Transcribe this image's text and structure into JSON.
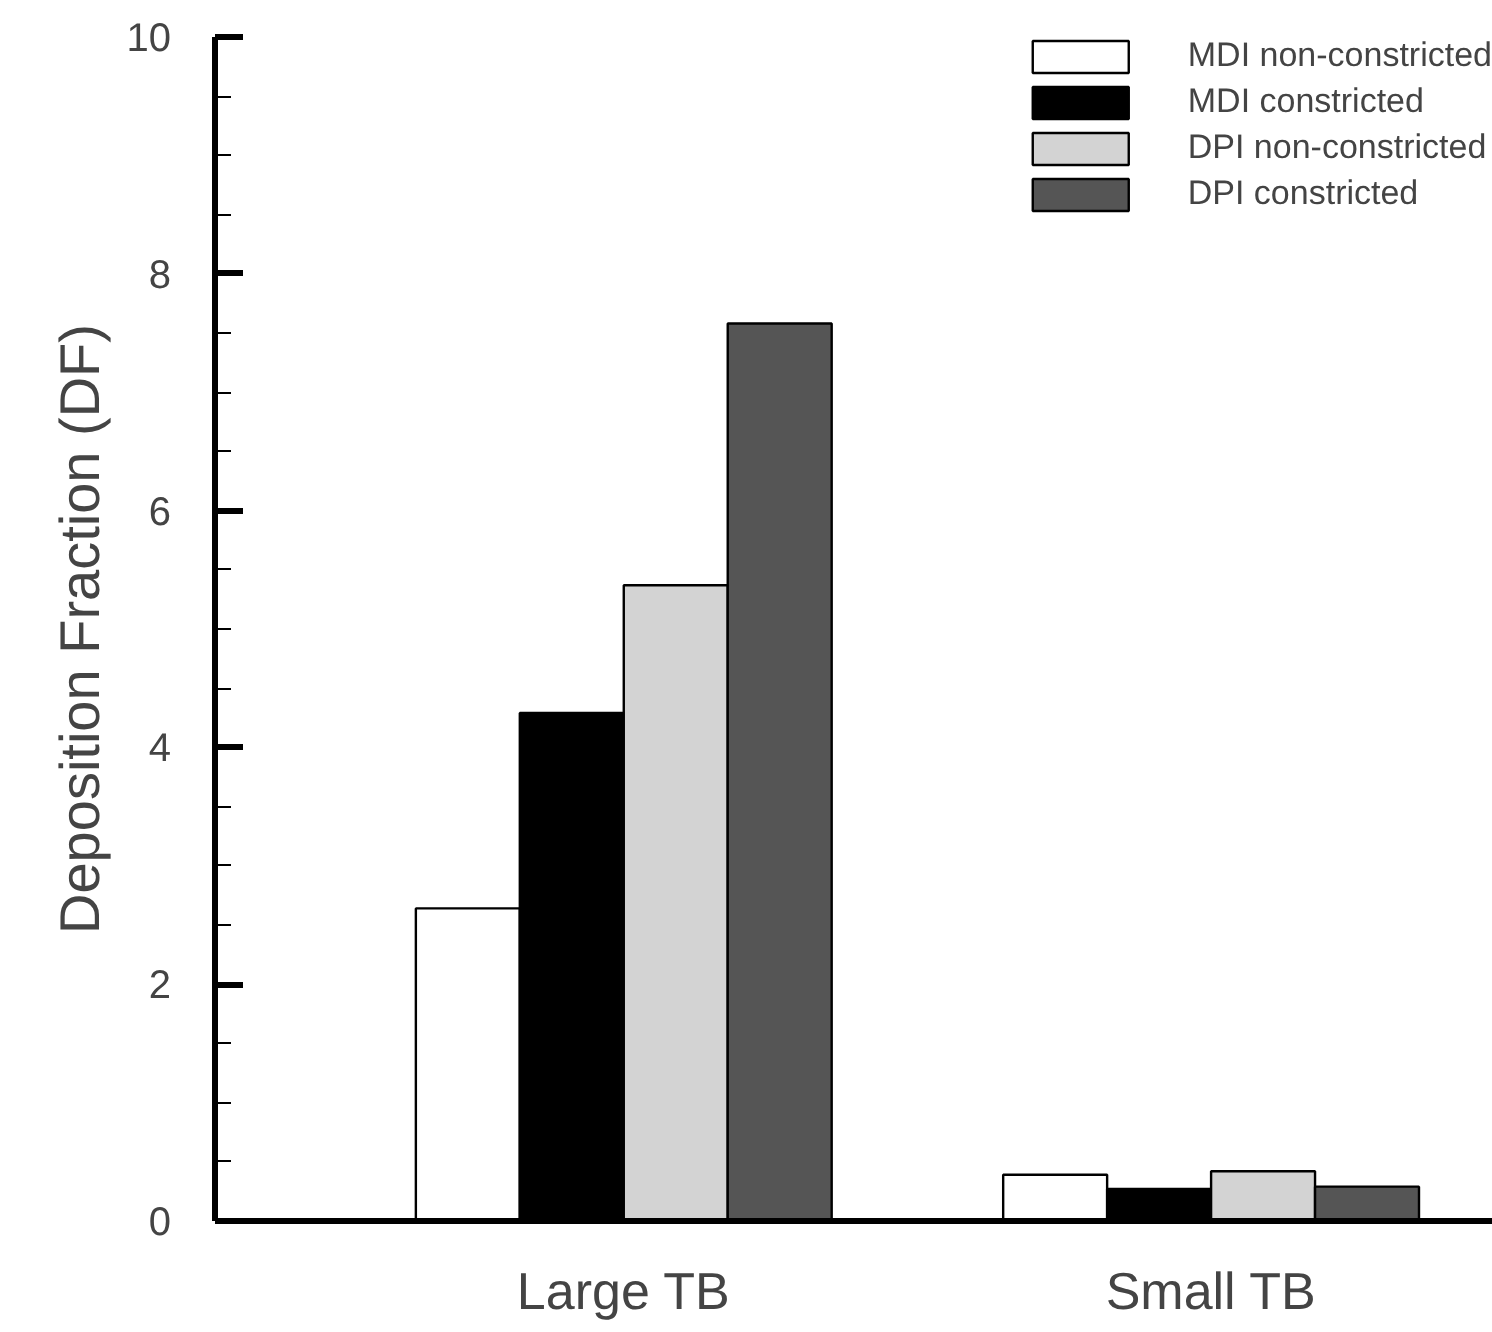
{
  "chart_data": {
    "type": "bar",
    "ylabel": "Deposition Fraction (DF)",
    "categories": [
      "Large TB",
      "Small TB"
    ],
    "series": [
      {
        "name": "MDI non-constricted",
        "color": "#ffffff",
        "values": [
          2.64,
          0.39
        ]
      },
      {
        "name": "MDI constricted",
        "color": "#000000",
        "values": [
          4.29,
          0.27
        ]
      },
      {
        "name": "DPI non-constricted",
        "color": "#d3d3d3",
        "values": [
          5.37,
          0.42
        ]
      },
      {
        "name": "DPI constricted",
        "color": "#555555",
        "values": [
          7.58,
          0.29
        ]
      }
    ],
    "ylim": [
      0,
      10
    ],
    "yticks": [
      0,
      {
        "value": 0.5,
        "label": null
      },
      {
        "value": 1,
        "label": null
      },
      {
        "value": 1.5,
        "label": null
      },
      2,
      {
        "value": 2.5,
        "label": null
      },
      {
        "value": 3,
        "label": null
      },
      {
        "value": 3.5,
        "label": null
      },
      4,
      {
        "value": 4.5,
        "label": null
      },
      {
        "value": 5,
        "label": null
      },
      {
        "value": 5.5,
        "label": null
      },
      6,
      {
        "value": 6.5,
        "label": null
      },
      {
        "value": 7,
        "label": null
      },
      {
        "value": 7.5,
        "label": null
      },
      8,
      {
        "value": 8.5,
        "label": null
      },
      {
        "value": 9,
        "label": null
      },
      {
        "value": 9.5,
        "label": null
      },
      10
    ],
    "grid": false,
    "legend": "top right"
  }
}
